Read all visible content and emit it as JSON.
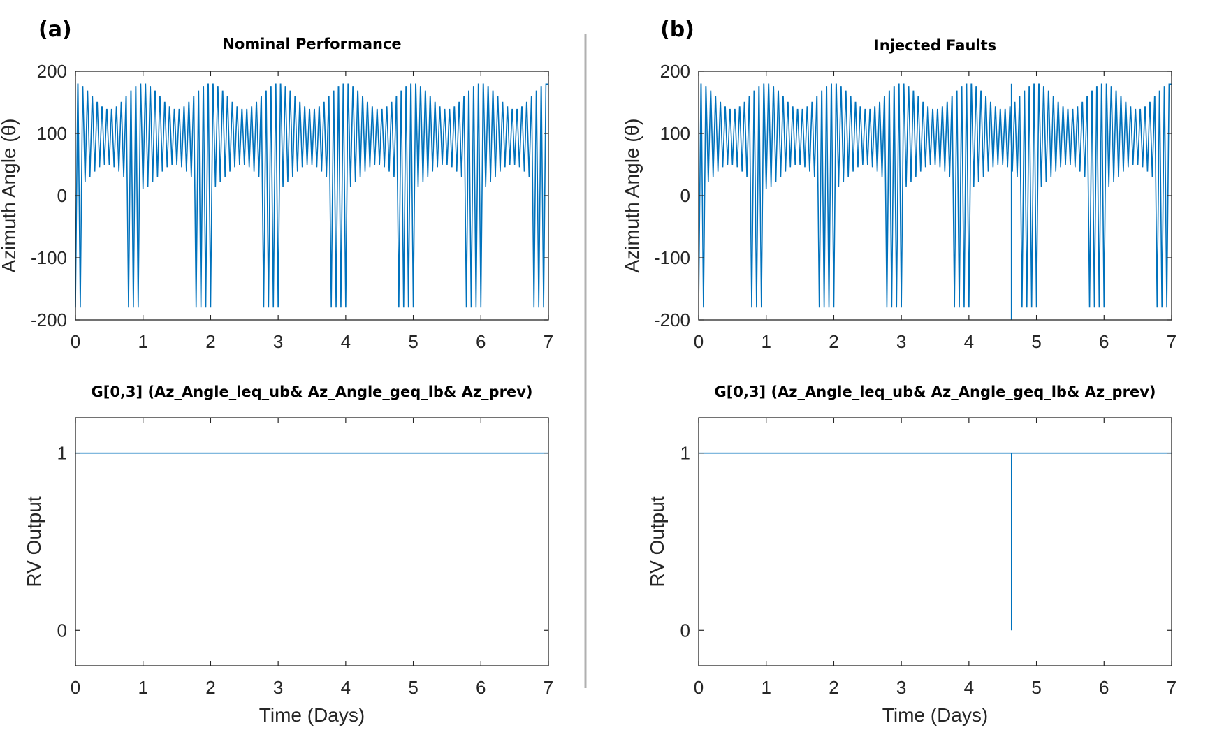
{
  "panels": [
    {
      "letter": "(a)",
      "title": "Nominal Performance"
    },
    {
      "letter": "(b)",
      "title": "Injected Faults"
    }
  ],
  "chart_data": [
    {
      "id": "a-top",
      "type": "line",
      "title": "Nominal Performance",
      "xlabel": "",
      "ylabel": "Azimuth Angle (θ)",
      "xlim": [
        0,
        7
      ],
      "ylim": [
        -200,
        200
      ],
      "xticks": [
        0,
        1,
        2,
        3,
        4,
        5,
        6,
        7
      ],
      "yticks": [
        -200,
        -100,
        0,
        100,
        200
      ],
      "color": "#0072BD",
      "series": [
        {
          "pattern": "periodic azimuth oscillation",
          "cycles_per_day": 14,
          "envelope_period_days": 1,
          "upper_extreme": 180,
          "lower_extreme": -180,
          "typical_upper_range": [
            138,
            180
          ],
          "typical_lower_range": [
            10,
            50
          ],
          "wrap_windows_days": [
            [
              0,
              0.15
            ],
            [
              0.82,
              1.0
            ],
            [
              1.8,
              2.05
            ],
            [
              2.78,
              3.05
            ],
            [
              3.77,
              4.05
            ],
            [
              4.77,
              5.05
            ],
            [
              5.78,
              6.05
            ],
            [
              6.78,
              7.0
            ]
          ]
        }
      ],
      "grid": false
    },
    {
      "id": "a-bottom",
      "type": "line",
      "title": "G[0,3] (Az_Angle_leq_ub& Az_Angle_geq_lb& Az_prev)",
      "xlabel": "Time (Days)",
      "ylabel": "RV Output",
      "xlim": [
        0,
        7
      ],
      "ylim": [
        -0.2,
        1.2
      ],
      "xticks": [
        0,
        1,
        2,
        3,
        4,
        5,
        6,
        7
      ],
      "yticks": [
        0,
        1
      ],
      "color": "#0072BD",
      "series": [
        {
          "x": [
            0,
            7
          ],
          "y": [
            1,
            1
          ]
        }
      ],
      "grid": false
    },
    {
      "id": "b-top",
      "type": "line",
      "title": "Injected Faults",
      "xlabel": "",
      "ylabel": "Azimuth Angle (θ)",
      "xlim": [
        0,
        7
      ],
      "ylim": [
        -200,
        200
      ],
      "xticks": [
        0,
        1,
        2,
        3,
        4,
        5,
        6,
        7
      ],
      "yticks": [
        -200,
        -100,
        0,
        100,
        200
      ],
      "color": "#0072BD",
      "series": [
        {
          "pattern": "periodic azimuth oscillation",
          "cycles_per_day": 14,
          "envelope_period_days": 1,
          "upper_extreme": 180,
          "lower_extreme": -180,
          "typical_upper_range": [
            138,
            180
          ],
          "typical_lower_range": [
            10,
            50
          ],
          "wrap_windows_days": [
            [
              0,
              0.15
            ],
            [
              0.82,
              1.0
            ],
            [
              1.8,
              2.05
            ],
            [
              2.78,
              3.05
            ],
            [
              3.77,
              4.05
            ],
            [
              4.77,
              5.05
            ],
            [
              5.78,
              6.05
            ],
            [
              6.78,
              7.0
            ]
          ],
          "fault_spike": {
            "x": 4.63,
            "y": -200
          }
        }
      ],
      "grid": false
    },
    {
      "id": "b-bottom",
      "type": "line",
      "title": "G[0,3] (Az_Angle_leq_ub& Az_Angle_geq_lb& Az_prev)",
      "xlabel": "Time (Days)",
      "ylabel": "RV Output",
      "xlim": [
        0,
        7
      ],
      "ylim": [
        -0.2,
        1.2
      ],
      "xticks": [
        0,
        1,
        2,
        3,
        4,
        5,
        6,
        7
      ],
      "yticks": [
        0,
        1
      ],
      "color": "#0072BD",
      "series": [
        {
          "x": [
            0,
            4.63,
            4.63,
            4.63,
            7
          ],
          "y": [
            1,
            1,
            0,
            1,
            1
          ]
        }
      ],
      "grid": false
    }
  ]
}
